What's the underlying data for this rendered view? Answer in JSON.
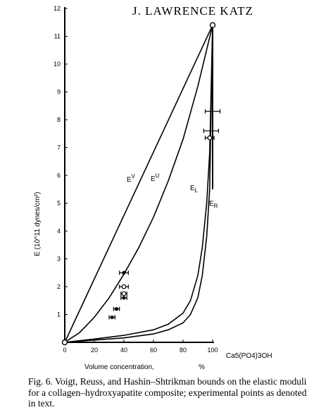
{
  "header": {
    "title": "J. LAWRENCE KATZ"
  },
  "chart_data": {
    "type": "line",
    "title": "",
    "xlabel": "Volume concentration,",
    "xlabel_unit": "%",
    "x_end_label": "Ca5(PO4)3OH",
    "ylabel": "E (10^11 dynes/cm²)",
    "xlim": [
      0,
      100
    ],
    "ylim": [
      0,
      12
    ],
    "x_ticks": [
      "0",
      "20",
      "40",
      "60",
      "80",
      "100"
    ],
    "y_ticks": [
      "1",
      "2",
      "3",
      "4",
      "5",
      "6",
      "7",
      "8",
      "9",
      "10",
      "11",
      "12"
    ],
    "series": [
      {
        "name": "E^V",
        "x": [
          0,
          100
        ],
        "y": [
          0,
          11.4
        ]
      },
      {
        "name": "E^U",
        "x": [
          0,
          10,
          20,
          30,
          40,
          50,
          60,
          70,
          80,
          90,
          100
        ],
        "y": [
          0,
          0.35,
          0.9,
          1.6,
          2.45,
          3.4,
          4.5,
          5.8,
          7.3,
          9.2,
          11.4
        ]
      },
      {
        "name": "E_L",
        "x": [
          0,
          20,
          40,
          60,
          70,
          80,
          85,
          90,
          93,
          96,
          98,
          100
        ],
        "y": [
          0,
          0.12,
          0.25,
          0.45,
          0.65,
          1.05,
          1.5,
          2.4,
          3.4,
          5.0,
          6.8,
          11.4
        ]
      },
      {
        "name": "E_R",
        "x": [
          0,
          20,
          40,
          60,
          70,
          80,
          85,
          90,
          93,
          96,
          98,
          100
        ],
        "y": [
          0,
          0.08,
          0.16,
          0.3,
          0.45,
          0.7,
          1.0,
          1.6,
          2.4,
          3.8,
          5.5,
          11.4
        ]
      }
    ],
    "points": [
      {
        "x": 32,
        "y": 0.9,
        "xerr": 2,
        "marker": "filled"
      },
      {
        "x": 35,
        "y": 1.2,
        "xerr": 2,
        "marker": "filled"
      },
      {
        "x": 40,
        "y": 1.6,
        "xerr": 2,
        "marker": "filled"
      },
      {
        "x": 40,
        "y": 1.75,
        "xerr": 2,
        "marker": "open"
      },
      {
        "x": 40,
        "y": 2.0,
        "xerr": 3,
        "marker": "open"
      },
      {
        "x": 40,
        "y": 2.5,
        "xerr": 3,
        "marker": "filled"
      },
      {
        "x": 98,
        "y": 7.35,
        "xerr": 3,
        "marker": "open"
      },
      {
        "x": 99,
        "y": 7.6,
        "xerr": 5,
        "marker": "none"
      },
      {
        "x": 100,
        "y": 8.3,
        "xerr": 5,
        "marker": "none"
      }
    ],
    "endpoints": [
      {
        "x": 0,
        "y": 0
      },
      {
        "x": 100,
        "y": 11.4
      }
    ]
  },
  "caption": "Fig. 6. Voigt, Reuss, and Hashin–Shtrikman bounds on the elastic moduli for a collagen–hydroxyapatite composite; experimental points as denoted in text."
}
